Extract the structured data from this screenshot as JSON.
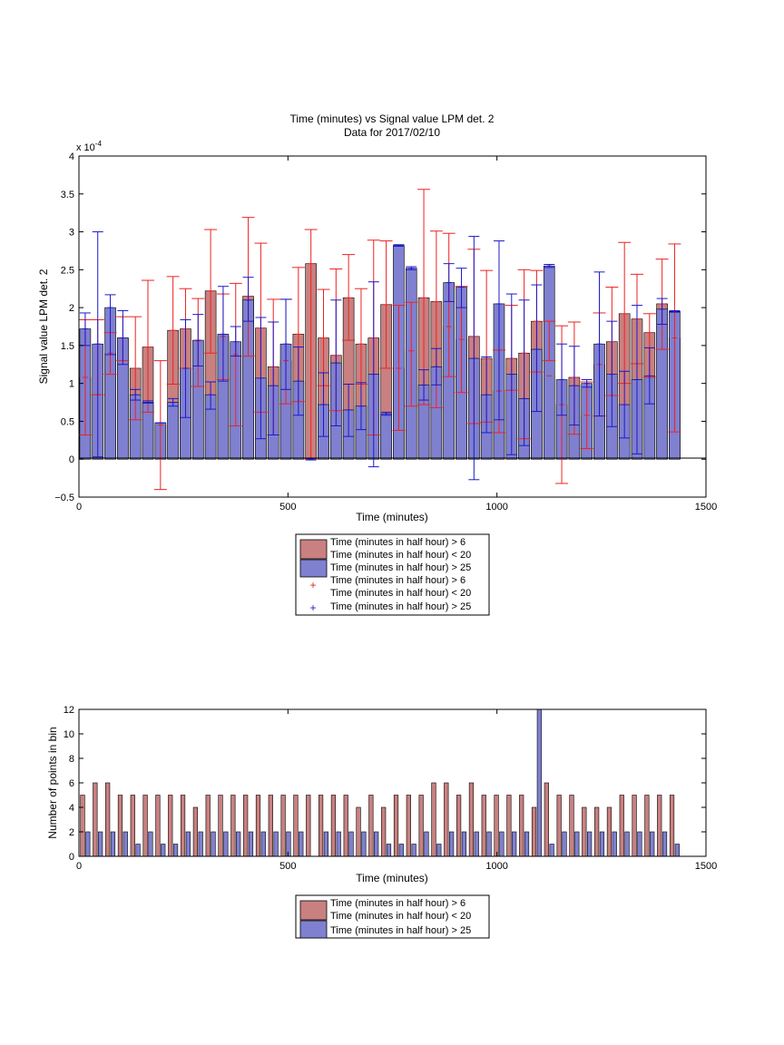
{
  "chart_data": [
    {
      "type": "bar",
      "title": "Time (minutes) vs Signal value LPM det. 2",
      "subtitle": "Data for 2017/02/10",
      "xlabel": "Time (minutes)",
      "ylabel": "Signal value LPM det. 2",
      "y_exponent_label": "x 10",
      "y_exponent_power": "-4",
      "xlim": [
        0,
        1500
      ],
      "ylim": [
        -0.5,
        4
      ],
      "y_scale_factor": 0.0001,
      "xticks": [
        "0",
        "500",
        "1000",
        "1500"
      ],
      "yticks": [
        "−0.5",
        "0",
        "0.5",
        "1",
        "1.5",
        "2",
        "2.5",
        "3",
        "3.5",
        "4"
      ],
      "grid": false,
      "legend_position": "below",
      "legend": [
        "Time (minutes in half hour) > 6\nTime (minutes in half hour) < 20",
        "Time (minutes in half hour) > 25",
        "Time (minutes in half hour) > 6\nTime (minutes in half hour) < 20",
        "Time (minutes in half hour) > 25"
      ],
      "colors": {
        "red_bar": "#c98080",
        "blue_bar": "#8080d0",
        "red_err": "#ee2222",
        "blue_err": "#1a1acc"
      },
      "x": [
        15,
        45,
        75,
        105,
        135,
        165,
        195,
        225,
        255,
        285,
        315,
        345,
        375,
        405,
        435,
        465,
        495,
        525,
        555,
        585,
        615,
        645,
        675,
        705,
        735,
        765,
        795,
        825,
        855,
        885,
        915,
        945,
        975,
        1005,
        1035,
        1065,
        1095,
        1125,
        1155,
        1185,
        1215,
        1245,
        1275,
        1305,
        1335,
        1365,
        1395,
        1425
      ],
      "series": [
        {
          "name": "Time (minutes in half hour) > 6 Time (minutes in half hour) < 20",
          "values": [
            1.08,
            0.85,
            1.4,
            1.6,
            1.2,
            1.48,
            0.45,
            1.7,
            1.72,
            1.56,
            2.22,
            1.62,
            1.38,
            2.15,
            1.73,
            1.22,
            1.3,
            1.65,
            2.58,
            1.6,
            1.37,
            2.13,
            1.52,
            1.6,
            2.04,
            1.2,
            1.43,
            2.13,
            2.08,
            1.75,
            1.58,
            1.62,
            1.33,
            0.9,
            1.33,
            1.4,
            1.82,
            1.1,
            0.72,
            1.08,
            0.58,
            1.25,
            1.55,
            1.92,
            1.85,
            1.67,
            2.05,
            1.6
          ],
          "err_low": [
            0.32,
            0.85,
            1.12,
            1.3,
            0.52,
            0.62,
            -0.4,
            0.99,
            1.2,
            0.96,
            1.4,
            1.05,
            0.44,
            1.36,
            0.62,
            0.32,
            0.73,
            0.76,
            0.0,
            0.97,
            0.64,
            1.57,
            0.99,
            0.32,
            1.2,
            0.38,
            0.7,
            0.72,
            0.68,
            1.09,
            0.88,
            0.47,
            0.49,
            0.35,
            0.91,
            0.27,
            1.15,
            1.3,
            -0.32,
            0.33,
            0.14,
            0.57,
            0.84,
            1.0,
            1.26,
            1.08,
            1.45,
            0.36
          ],
          "err_high": [
            1.84,
            1.84,
            1.67,
            1.88,
            1.88,
            2.36,
            1.3,
            2.41,
            2.25,
            2.12,
            3.03,
            2.18,
            2.32,
            3.19,
            2.85,
            2.11,
            2.11,
            2.53,
            3.03,
            2.24,
            2.51,
            2.7,
            2.25,
            2.89,
            2.88,
            2.03,
            2.07,
            3.56,
            3.01,
            2.98,
            2.28,
            2.77,
            2.49,
            1.44,
            2.03,
            2.5,
            2.49,
            1.82,
            1.76,
            1.81,
            1.02,
            1.93,
            2.27,
            2.86,
            2.44,
            1.92,
            2.64,
            2.84
          ]
        },
        {
          "name": "Time (minutes in half hour) > 25",
          "values": [
            1.72,
            1.52,
            2.0,
            1.6,
            0.85,
            0.75,
            0.48,
            0.75,
            1.2,
            1.57,
            0.85,
            1.65,
            1.55,
            2.1,
            1.07,
            0.97,
            1.52,
            1.03,
            0.0,
            0.72,
            1.27,
            0.65,
            0.7,
            1.12,
            0.6,
            2.82,
            2.52,
            0.98,
            1.22,
            2.33,
            2.27,
            1.33,
            0.85,
            2.05,
            1.12,
            0.8,
            1.45,
            2.55,
            1.05,
            0.97,
            1.0,
            1.52,
            1.12,
            0.72,
            1.05,
            1.1,
            1.98,
            1.95
          ],
          "err_low": [
            1.5,
            0.03,
            1.38,
            1.25,
            0.78,
            0.74,
            0.48,
            0.7,
            0.55,
            1.23,
            0.66,
            1.03,
            1.36,
            1.82,
            0.27,
            0.32,
            0.92,
            0.58,
            -0.01,
            0.3,
            0.44,
            0.3,
            0.39,
            -0.1,
            0.58,
            2.81,
            2.5,
            0.78,
            0.98,
            2.08,
            2.0,
            -0.27,
            0.35,
            0.52,
            0.06,
            0.18,
            0.63,
            2.53,
            0.58,
            0.45,
            0.95,
            0.57,
            0.43,
            0.28,
            0.07,
            0.73,
            1.78,
            1.94
          ],
          "err_high": [
            1.93,
            3.0,
            2.17,
            1.96,
            0.92,
            0.77,
            0.48,
            0.8,
            1.84,
            1.91,
            1.02,
            2.28,
            1.75,
            2.4,
            1.87,
            1.81,
            2.11,
            1.48,
            0.01,
            1.14,
            2.1,
            0.99,
            1.01,
            2.34,
            0.62,
            2.83,
            2.54,
            1.18,
            1.46,
            2.58,
            2.52,
            2.94,
            1.35,
            2.88,
            2.18,
            2.1,
            2.3,
            2.57,
            1.52,
            1.49,
            1.05,
            2.47,
            1.82,
            1.16,
            2.03,
            1.47,
            2.12,
            1.96
          ]
        }
      ]
    },
    {
      "type": "bar",
      "xlabel": "Time (minutes)",
      "ylabel": "Number of points in bin",
      "xlim": [
        0,
        1500
      ],
      "ylim": [
        0,
        12
      ],
      "xticks": [
        "0",
        "500",
        "1000",
        "1500"
      ],
      "yticks": [
        "0",
        "2",
        "4",
        "6",
        "8",
        "10",
        "12"
      ],
      "grid": false,
      "legend_position": "below",
      "legend": [
        "Time (minutes in half hour) > 6\nTime (minutes in half hour) < 20",
        "Time (minutes in half hour) > 25"
      ],
      "colors": {
        "red_bar": "#c98080",
        "blue_bar": "#8080d0"
      },
      "x": [
        15,
        45,
        75,
        105,
        135,
        165,
        195,
        225,
        255,
        285,
        315,
        345,
        375,
        405,
        435,
        465,
        495,
        525,
        555,
        585,
        615,
        645,
        675,
        705,
        735,
        765,
        795,
        825,
        855,
        885,
        915,
        945,
        975,
        1005,
        1035,
        1065,
        1095,
        1125,
        1155,
        1185,
        1215,
        1245,
        1275,
        1305,
        1335,
        1365,
        1395,
        1425
      ],
      "series": [
        {
          "name": "Time (minutes in half hour) > 6 Time (minutes in half hour) < 20",
          "values": [
            5,
            6,
            6,
            5,
            5,
            5,
            5,
            5,
            5,
            4,
            5,
            5,
            5,
            5,
            5,
            5,
            5,
            5,
            5,
            5,
            5,
            5,
            4,
            5,
            4,
            5,
            5,
            5,
            6,
            6,
            5,
            6,
            5,
            5,
            5,
            5,
            4,
            6,
            5,
            5,
            4,
            4,
            4,
            5,
            5,
            5,
            5,
            5
          ]
        },
        {
          "name": "Time (minutes in half hour) > 25",
          "values": [
            2,
            2,
            2,
            2,
            1,
            2,
            1,
            1,
            2,
            2,
            2,
            2,
            2,
            2,
            2,
            2,
            2,
            2,
            0,
            2,
            2,
            2,
            2,
            2,
            1,
            1,
            1,
            2,
            1,
            2,
            2,
            2,
            2,
            2,
            2,
            2,
            12,
            1,
            2,
            2,
            2,
            2,
            2,
            2,
            2,
            2,
            2,
            1
          ]
        }
      ]
    }
  ]
}
